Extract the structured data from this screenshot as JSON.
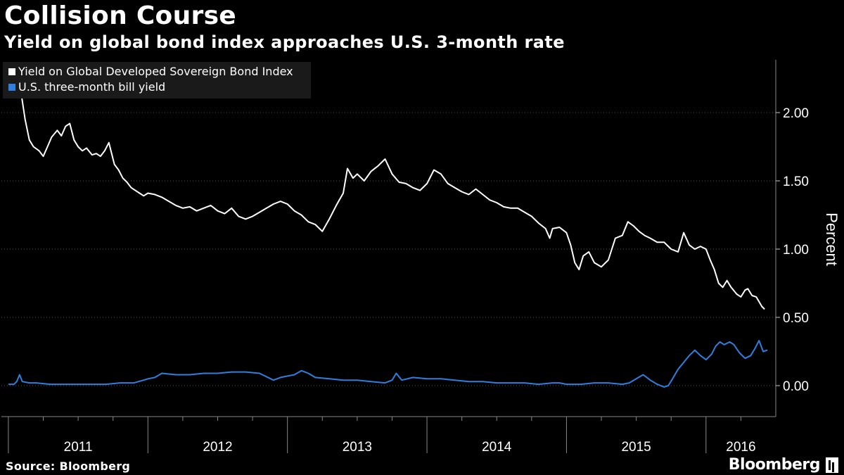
{
  "title": "Collision Course",
  "subtitle": "Yield on global bond index approaches U.S. 3-month rate",
  "source": "Source: Bloomberg",
  "brand": "Bloomberg",
  "colors": {
    "background": "#000000",
    "series1": "#ffffff",
    "series2": "#2f7fde",
    "grid": "#444444"
  },
  "legend": [
    {
      "label": "Yield on Global Developed Sovereign Bond Index",
      "color": "#ffffff"
    },
    {
      "label": "U.S. three-month bill yield",
      "color": "#2f7fde"
    }
  ],
  "chart_data": {
    "type": "line",
    "xlabel": "",
    "ylabel": "Percent",
    "y_axis_position": "right",
    "ylim": [
      -0.05,
      2.4
    ],
    "yticks": [
      0.0,
      0.5,
      1.0,
      1.5,
      2.0
    ],
    "ytick_labels": [
      "0.00",
      "0.50",
      "1.00",
      "1.50",
      "2.00"
    ],
    "xlim": [
      2010.95,
      2016.5
    ],
    "year_boundaries": [
      2011.0,
      2012.0,
      2013.0,
      2014.0,
      2015.0,
      2016.0
    ],
    "year_labels": [
      "2011",
      "2012",
      "2013",
      "2014",
      "2015",
      "2016"
    ],
    "legend_position": "top-left",
    "grid": true,
    "series": [
      {
        "name": "Yield on Global Developed Sovereign Bond Index",
        "color": "#ffffff",
        "points": [
          [
            2011.0,
            2.17
          ],
          [
            2011.03,
            2.14
          ],
          [
            2011.06,
            2.18
          ],
          [
            2011.09,
            2.15
          ],
          [
            2011.12,
            1.95
          ],
          [
            2011.15,
            1.8
          ],
          [
            2011.18,
            1.75
          ],
          [
            2011.22,
            1.72
          ],
          [
            2011.25,
            1.68
          ],
          [
            2011.28,
            1.75
          ],
          [
            2011.31,
            1.82
          ],
          [
            2011.35,
            1.87
          ],
          [
            2011.38,
            1.83
          ],
          [
            2011.41,
            1.9
          ],
          [
            2011.44,
            1.92
          ],
          [
            2011.47,
            1.8
          ],
          [
            2011.5,
            1.75
          ],
          [
            2011.53,
            1.72
          ],
          [
            2011.56,
            1.74
          ],
          [
            2011.6,
            1.69
          ],
          [
            2011.63,
            1.7
          ],
          [
            2011.66,
            1.68
          ],
          [
            2011.69,
            1.72
          ],
          [
            2011.72,
            1.78
          ],
          [
            2011.76,
            1.62
          ],
          [
            2011.79,
            1.58
          ],
          [
            2011.82,
            1.52
          ],
          [
            2011.85,
            1.49
          ],
          [
            2011.88,
            1.45
          ],
          [
            2011.91,
            1.43
          ],
          [
            2011.94,
            1.41
          ],
          [
            2011.97,
            1.39
          ],
          [
            2012.0,
            1.41
          ],
          [
            2012.05,
            1.4
          ],
          [
            2012.1,
            1.38
          ],
          [
            2012.15,
            1.35
          ],
          [
            2012.2,
            1.32
          ],
          [
            2012.25,
            1.3
          ],
          [
            2012.3,
            1.31
          ],
          [
            2012.35,
            1.28
          ],
          [
            2012.4,
            1.3
          ],
          [
            2012.45,
            1.32
          ],
          [
            2012.5,
            1.28
          ],
          [
            2012.55,
            1.26
          ],
          [
            2012.6,
            1.3
          ],
          [
            2012.65,
            1.24
          ],
          [
            2012.7,
            1.22
          ],
          [
            2012.75,
            1.24
          ],
          [
            2012.8,
            1.27
          ],
          [
            2012.85,
            1.3
          ],
          [
            2012.9,
            1.33
          ],
          [
            2012.95,
            1.35
          ],
          [
            2013.0,
            1.33
          ],
          [
            2013.05,
            1.28
          ],
          [
            2013.1,
            1.25
          ],
          [
            2013.15,
            1.2
          ],
          [
            2013.2,
            1.18
          ],
          [
            2013.25,
            1.13
          ],
          [
            2013.3,
            1.22
          ],
          [
            2013.35,
            1.32
          ],
          [
            2013.4,
            1.41
          ],
          [
            2013.43,
            1.59
          ],
          [
            2013.47,
            1.52
          ],
          [
            2013.5,
            1.55
          ],
          [
            2013.55,
            1.5
          ],
          [
            2013.6,
            1.57
          ],
          [
            2013.65,
            1.61
          ],
          [
            2013.7,
            1.66
          ],
          [
            2013.75,
            1.55
          ],
          [
            2013.8,
            1.49
          ],
          [
            2013.85,
            1.48
          ],
          [
            2013.9,
            1.45
          ],
          [
            2013.95,
            1.43
          ],
          [
            2014.0,
            1.48
          ],
          [
            2014.05,
            1.58
          ],
          [
            2014.1,
            1.55
          ],
          [
            2014.15,
            1.48
          ],
          [
            2014.2,
            1.45
          ],
          [
            2014.25,
            1.42
          ],
          [
            2014.3,
            1.4
          ],
          [
            2014.35,
            1.44
          ],
          [
            2014.4,
            1.4
          ],
          [
            2014.45,
            1.36
          ],
          [
            2014.5,
            1.34
          ],
          [
            2014.55,
            1.31
          ],
          [
            2014.6,
            1.3
          ],
          [
            2014.65,
            1.3
          ],
          [
            2014.7,
            1.27
          ],
          [
            2014.75,
            1.24
          ],
          [
            2014.8,
            1.19
          ],
          [
            2014.85,
            1.15
          ],
          [
            2014.88,
            1.08
          ],
          [
            2014.9,
            1.15
          ],
          [
            2014.95,
            1.16
          ],
          [
            2015.0,
            1.12
          ],
          [
            2015.03,
            1.03
          ],
          [
            2015.06,
            0.9
          ],
          [
            2015.09,
            0.85
          ],
          [
            2015.12,
            0.95
          ],
          [
            2015.16,
            0.98
          ],
          [
            2015.2,
            0.9
          ],
          [
            2015.25,
            0.87
          ],
          [
            2015.3,
            0.92
          ],
          [
            2015.35,
            1.08
          ],
          [
            2015.4,
            1.1
          ],
          [
            2015.44,
            1.2
          ],
          [
            2015.48,
            1.17
          ],
          [
            2015.52,
            1.13
          ],
          [
            2015.56,
            1.1
          ],
          [
            2015.6,
            1.08
          ],
          [
            2015.65,
            1.05
          ],
          [
            2015.7,
            1.05
          ],
          [
            2015.75,
            1.0
          ],
          [
            2015.8,
            0.98
          ],
          [
            2015.84,
            1.12
          ],
          [
            2015.88,
            1.03
          ],
          [
            2015.92,
            1.0
          ],
          [
            2015.96,
            1.02
          ],
          [
            2016.0,
            1.0
          ],
          [
            2016.03,
            0.92
          ],
          [
            2016.06,
            0.85
          ],
          [
            2016.09,
            0.75
          ],
          [
            2016.12,
            0.72
          ],
          [
            2016.15,
            0.77
          ],
          [
            2016.18,
            0.72
          ],
          [
            2016.22,
            0.67
          ],
          [
            2016.25,
            0.65
          ],
          [
            2016.28,
            0.7
          ],
          [
            2016.3,
            0.71
          ],
          [
            2016.33,
            0.66
          ],
          [
            2016.36,
            0.65
          ],
          [
            2016.4,
            0.58
          ],
          [
            2016.42,
            0.56
          ]
        ]
      },
      {
        "name": "U.S. three-month bill yield",
        "color": "#2f7fde",
        "points": [
          [
            2011.0,
            0.01
          ],
          [
            2011.04,
            0.01
          ],
          [
            2011.06,
            0.03
          ],
          [
            2011.08,
            0.08
          ],
          [
            2011.1,
            0.03
          ],
          [
            2011.15,
            0.02
          ],
          [
            2011.2,
            0.02
          ],
          [
            2011.3,
            0.01
          ],
          [
            2011.4,
            0.01
          ],
          [
            2011.5,
            0.01
          ],
          [
            2011.6,
            0.01
          ],
          [
            2011.7,
            0.01
          ],
          [
            2011.8,
            0.02
          ],
          [
            2011.9,
            0.02
          ],
          [
            2011.97,
            0.04
          ],
          [
            2012.0,
            0.05
          ],
          [
            2012.05,
            0.06
          ],
          [
            2012.1,
            0.09
          ],
          [
            2012.2,
            0.08
          ],
          [
            2012.3,
            0.08
          ],
          [
            2012.4,
            0.09
          ],
          [
            2012.5,
            0.09
          ],
          [
            2012.6,
            0.1
          ],
          [
            2012.7,
            0.1
          ],
          [
            2012.8,
            0.09
          ],
          [
            2012.9,
            0.04
          ],
          [
            2012.95,
            0.06
          ],
          [
            2013.0,
            0.07
          ],
          [
            2013.05,
            0.08
          ],
          [
            2013.1,
            0.11
          ],
          [
            2013.15,
            0.09
          ],
          [
            2013.2,
            0.06
          ],
          [
            2013.3,
            0.05
          ],
          [
            2013.4,
            0.04
          ],
          [
            2013.5,
            0.04
          ],
          [
            2013.6,
            0.03
          ],
          [
            2013.7,
            0.02
          ],
          [
            2013.75,
            0.04
          ],
          [
            2013.78,
            0.09
          ],
          [
            2013.82,
            0.04
          ],
          [
            2013.9,
            0.06
          ],
          [
            2014.0,
            0.05
          ],
          [
            2014.1,
            0.05
          ],
          [
            2014.2,
            0.04
          ],
          [
            2014.3,
            0.03
          ],
          [
            2014.4,
            0.03
          ],
          [
            2014.5,
            0.02
          ],
          [
            2014.6,
            0.02
          ],
          [
            2014.7,
            0.02
          ],
          [
            2014.8,
            0.01
          ],
          [
            2014.9,
            0.02
          ],
          [
            2014.95,
            0.02
          ],
          [
            2015.0,
            0.01
          ],
          [
            2015.1,
            0.01
          ],
          [
            2015.2,
            0.02
          ],
          [
            2015.3,
            0.02
          ],
          [
            2015.4,
            0.01
          ],
          [
            2015.45,
            0.02
          ],
          [
            2015.5,
            0.05
          ],
          [
            2015.55,
            0.08
          ],
          [
            2015.6,
            0.04
          ],
          [
            2015.65,
            0.01
          ],
          [
            2015.7,
            -0.01
          ],
          [
            2015.73,
            0.0
          ],
          [
            2015.76,
            0.05
          ],
          [
            2015.8,
            0.12
          ],
          [
            2015.84,
            0.17
          ],
          [
            2015.88,
            0.22
          ],
          [
            2015.92,
            0.26
          ],
          [
            2015.96,
            0.22
          ],
          [
            2016.0,
            0.19
          ],
          [
            2016.04,
            0.23
          ],
          [
            2016.07,
            0.29
          ],
          [
            2016.1,
            0.32
          ],
          [
            2016.13,
            0.3
          ],
          [
            2016.17,
            0.32
          ],
          [
            2016.2,
            0.3
          ],
          [
            2016.24,
            0.24
          ],
          [
            2016.28,
            0.2
          ],
          [
            2016.32,
            0.22
          ],
          [
            2016.35,
            0.27
          ],
          [
            2016.38,
            0.33
          ],
          [
            2016.41,
            0.25
          ],
          [
            2016.44,
            0.26
          ]
        ]
      }
    ]
  }
}
